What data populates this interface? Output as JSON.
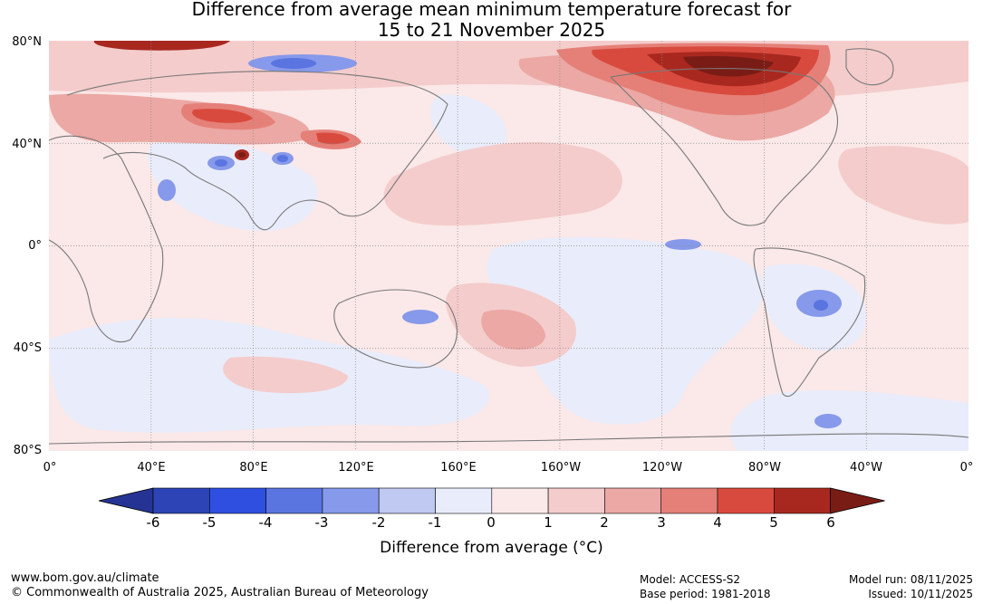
{
  "title": {
    "line1": "Difference from average mean minimum temperature forecast for",
    "line2": "15 to 21 November 2025"
  },
  "map": {
    "lat_labels": [
      "80°N",
      "40°N",
      "0°",
      "40°S",
      "80°S"
    ],
    "lon_labels": [
      "0°",
      "40°E",
      "80°E",
      "120°E",
      "160°E",
      "160°W",
      "120°W",
      "80°W",
      "40°W",
      "0°"
    ]
  },
  "colorbar": {
    "ticks": [
      "-6",
      "-5",
      "-4",
      "-3",
      "-2",
      "-1",
      "0",
      "1",
      "2",
      "3",
      "4",
      "5",
      "6"
    ],
    "colors": [
      "#253494",
      "#2c44b5",
      "#2f4fe0",
      "#5a74e0",
      "#8699ea",
      "#bfc9f1",
      "#e9ecfa",
      "#fbe8e8",
      "#f4cccc",
      "#eba8a4",
      "#e58078",
      "#d94a3e",
      "#a8281f",
      "#7a1c16"
    ],
    "label": "Difference from average (°C)"
  },
  "footer": {
    "url": "www.bom.gov.au/climate",
    "copyright": "© Commonwealth of Australia 2025, Australian Bureau of Meteorology",
    "model": "Model: ACCESS-S2",
    "base_period": "Base period: 1981-2018",
    "model_run": "Model run: 08/11/2025",
    "issued": "Issued: 10/11/2025"
  }
}
